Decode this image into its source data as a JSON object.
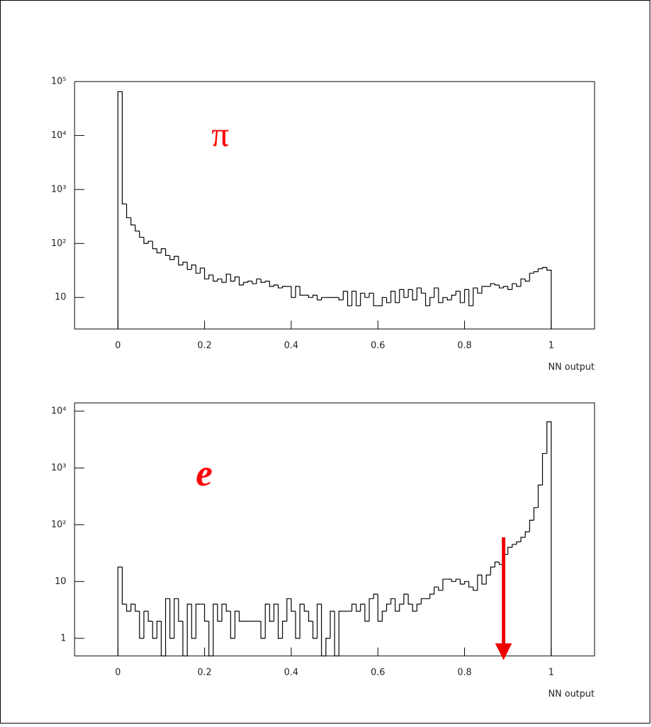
{
  "chart_data": [
    {
      "type": "histogram",
      "color": "#000000",
      "log_y": true,
      "x_label": "NN output",
      "annotation": {
        "text": "π",
        "color": "#ff0000"
      },
      "xlim": [
        -0.1,
        1.1
      ],
      "xticks": [
        0,
        0.2,
        0.4,
        0.6,
        0.8,
        1
      ],
      "ylim": [
        2.6,
        100000
      ],
      "yticks": [
        10,
        {
          "value": 100,
          "label": "10²"
        },
        {
          "value": 1000,
          "label": "10³"
        },
        {
          "value": 10000,
          "label": "10⁴"
        },
        {
          "value": 100000,
          "label": "10⁵"
        }
      ],
      "bins": [
        0,
        0.01,
        0.02,
        0.03,
        0.04,
        0.05,
        0.06,
        0.07,
        0.08,
        0.09,
        0.1,
        0.11,
        0.12,
        0.13,
        0.14,
        0.15,
        0.16,
        0.17,
        0.18,
        0.19,
        0.2,
        0.21,
        0.22,
        0.23,
        0.24,
        0.25,
        0.26,
        0.27,
        0.28,
        0.29,
        0.3,
        0.31,
        0.32,
        0.33,
        0.34,
        0.35,
        0.36,
        0.37,
        0.38,
        0.39,
        0.4,
        0.41,
        0.42,
        0.43,
        0.44,
        0.45,
        0.46,
        0.47,
        0.48,
        0.49,
        0.5,
        0.51,
        0.52,
        0.53,
        0.54,
        0.55,
        0.56,
        0.57,
        0.58,
        0.59,
        0.6,
        0.61,
        0.62,
        0.63,
        0.64,
        0.65,
        0.66,
        0.67,
        0.68,
        0.69,
        0.7,
        0.71,
        0.72,
        0.73,
        0.74,
        0.75,
        0.76,
        0.77,
        0.78,
        0.79,
        0.8,
        0.81,
        0.82,
        0.83,
        0.84,
        0.85,
        0.86,
        0.87,
        0.88,
        0.89,
        0.9,
        0.91,
        0.92,
        0.93,
        0.94,
        0.95,
        0.96,
        0.97,
        0.98,
        0.99,
        1
      ],
      "values": [
        65000,
        540,
        300,
        220,
        170,
        130,
        100,
        110,
        80,
        67,
        80,
        60,
        50,
        58,
        40,
        45,
        33,
        40,
        28,
        35,
        22,
        26,
        20,
        22,
        19,
        27,
        20,
        24,
        17,
        19,
        20,
        18,
        22,
        19,
        20,
        16,
        17,
        15,
        16,
        16,
        10,
        16,
        11,
        11,
        10,
        11,
        9,
        10,
        10,
        10,
        10,
        9,
        13,
        7,
        13,
        7,
        12,
        10,
        12,
        7,
        7,
        10,
        8,
        13,
        8,
        14,
        10,
        14,
        9,
        15,
        12,
        7,
        10,
        15,
        8,
        10,
        9,
        11,
        13,
        8,
        14,
        7,
        15,
        12,
        16,
        16,
        18,
        17,
        15,
        16,
        14,
        18,
        16,
        22,
        20,
        28,
        30,
        34,
        36,
        32
      ]
    },
    {
      "type": "histogram",
      "color": "#000000",
      "log_y": true,
      "x_label": "NN output",
      "annotation": {
        "text": "e",
        "color": "#ff0000"
      },
      "arrow": {
        "x": 0.89,
        "from": 60,
        "to": 0.42,
        "color": "#ee0000"
      },
      "xlim": [
        -0.1,
        1.1
      ],
      "xticks": [
        0,
        0.2,
        0.4,
        0.6,
        0.8,
        1
      ],
      "ylim": [
        0.49,
        14000
      ],
      "yticks": [
        1,
        10,
        {
          "value": 100,
          "label": "10²"
        },
        {
          "value": 1000,
          "label": "10³"
        },
        {
          "value": 10000,
          "label": "10⁴"
        }
      ],
      "bins": [
        0,
        0.01,
        0.02,
        0.03,
        0.04,
        0.05,
        0.06,
        0.07,
        0.08,
        0.09,
        0.1,
        0.11,
        0.12,
        0.13,
        0.14,
        0.15,
        0.16,
        0.17,
        0.18,
        0.19,
        0.2,
        0.21,
        0.22,
        0.23,
        0.24,
        0.25,
        0.26,
        0.27,
        0.28,
        0.29,
        0.3,
        0.31,
        0.32,
        0.33,
        0.34,
        0.35,
        0.36,
        0.37,
        0.38,
        0.39,
        0.4,
        0.41,
        0.42,
        0.43,
        0.44,
        0.45,
        0.46,
        0.47,
        0.48,
        0.49,
        0.5,
        0.51,
        0.52,
        0.53,
        0.54,
        0.55,
        0.56,
        0.57,
        0.58,
        0.59,
        0.6,
        0.61,
        0.62,
        0.63,
        0.64,
        0.65,
        0.66,
        0.67,
        0.68,
        0.69,
        0.7,
        0.71,
        0.72,
        0.73,
        0.74,
        0.75,
        0.76,
        0.77,
        0.78,
        0.79,
        0.8,
        0.81,
        0.82,
        0.83,
        0.84,
        0.85,
        0.86,
        0.87,
        0.88,
        0.89,
        0.9,
        0.91,
        0.92,
        0.93,
        0.94,
        0.95,
        0.96,
        0.97,
        0.98,
        0.99,
        1
      ],
      "values": [
        18,
        4,
        3,
        4,
        3,
        1,
        3,
        2,
        1,
        2,
        0,
        5,
        1,
        5,
        2,
        0,
        4,
        1,
        4,
        4,
        2,
        0,
        4,
        2,
        4,
        3,
        1,
        3,
        2,
        2,
        2,
        2,
        2,
        1,
        4,
        2,
        4,
        1,
        2,
        5,
        3,
        1,
        4,
        3,
        2,
        1,
        4,
        0,
        1,
        3,
        0,
        3,
        3,
        3,
        4,
        3,
        4,
        2,
        5,
        6,
        2,
        3,
        4,
        5,
        3,
        4,
        6,
        4,
        3,
        4,
        5,
        5,
        6,
        8,
        7,
        11,
        11,
        10,
        11,
        9,
        10,
        8,
        7,
        13,
        9,
        13,
        18,
        22,
        20,
        30,
        40,
        45,
        50,
        60,
        75,
        120,
        200,
        500,
        1800,
        6500
      ]
    }
  ]
}
